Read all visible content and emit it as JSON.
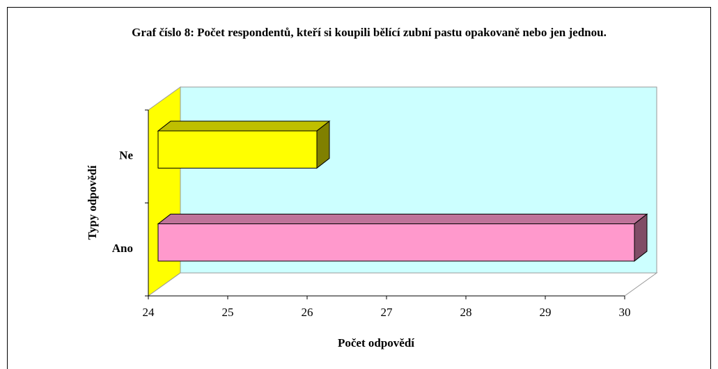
{
  "chart_data": {
    "type": "bar",
    "orientation": "horizontal",
    "title": "Graf číslo 8: Počet respondentů, kteří si koupili bělící zubní pastu opakovaně nebo jen jednou.",
    "xlabel": "Počet odpovědí",
    "ylabel": "Typy odpovědí",
    "categories": [
      "Ano",
      "Ne"
    ],
    "values": [
      30,
      26
    ],
    "colors": [
      "#ff99cc",
      "#ffff00"
    ],
    "xlim": [
      24,
      30
    ],
    "xticks": [
      24,
      25,
      26,
      27,
      28,
      29,
      30
    ]
  }
}
